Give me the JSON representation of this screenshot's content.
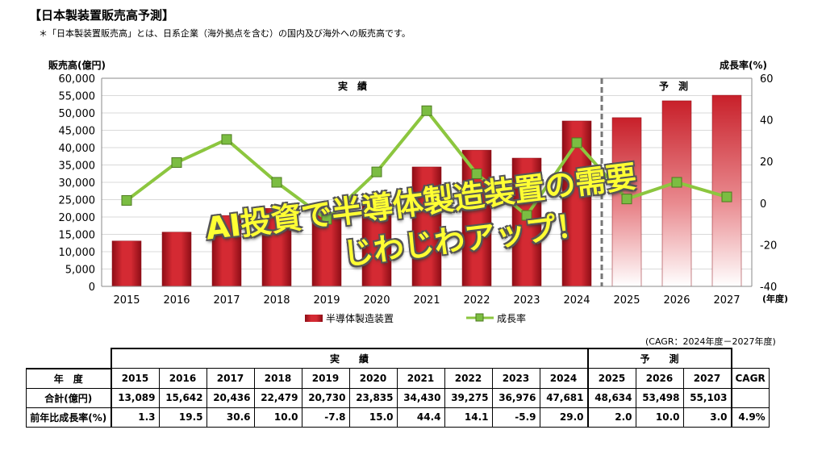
{
  "header": {
    "title": "【日本製装置販売高予測】",
    "note": "＊「日本製装置販売高」とは、日系企業（海外拠点を含む）の国内及び海外への販売高です。"
  },
  "chart_data": {
    "type": "bar",
    "ylabel": "販売高(億円)",
    "y2label": "成長率(%)",
    "xunit": "(年度)",
    "ylim": [
      0,
      60000
    ],
    "y2lim": [
      -40,
      60
    ],
    "yticks": [
      "0",
      "5,000",
      "10,000",
      "15,000",
      "20,000",
      "25,000",
      "30,000",
      "35,000",
      "40,000",
      "45,000",
      "50,000",
      "55,000",
      "60,000"
    ],
    "y2ticks": [
      "-40",
      "-20",
      "0",
      "20",
      "40",
      "60"
    ],
    "categories": [
      "2015",
      "2016",
      "2017",
      "2018",
      "2019",
      "2020",
      "2021",
      "2022",
      "2023",
      "2024",
      "2025",
      "2026",
      "2027"
    ],
    "series": [
      {
        "name": "半導体製造装置",
        "type": "bar",
        "color": "#c8202a",
        "values": [
          13089,
          15642,
          20436,
          22479,
          20730,
          23835,
          34430,
          39275,
          36976,
          47681,
          48634,
          53498,
          55103
        ]
      },
      {
        "name": "成長率",
        "type": "line",
        "color": "#8cc63f",
        "marker_color": "#7bbd42",
        "values": [
          1.3,
          19.5,
          30.6,
          10.0,
          -7.8,
          15.0,
          44.4,
          14.1,
          -5.9,
          29.0,
          2.0,
          10.0,
          3.0
        ]
      }
    ],
    "annotations": {
      "actual": "実　績",
      "forecast": "予　測"
    },
    "legend": "bottom"
  },
  "overlay": {
    "line1": "AI投資で半導体製造装置の需要",
    "line2": "じわじわアップ！"
  },
  "table": {
    "cagr_note": "(CAGR：2024年度－2027年度)",
    "group_actual": "実　　績",
    "group_forecast": "予　　測",
    "col_year": "年　度",
    "col_cagr": "CAGR",
    "row_total": "合計(億円)",
    "row_growth": "前年比成長率(%)",
    "years": [
      "2015",
      "2016",
      "2017",
      "2018",
      "2019",
      "2020",
      "2021",
      "2022",
      "2023",
      "2024",
      "2025",
      "2026",
      "2027"
    ],
    "totals": [
      "13,089",
      "15,642",
      "20,436",
      "22,479",
      "20,730",
      "23,835",
      "34,430",
      "39,275",
      "36,976",
      "47,681",
      "48,634",
      "53,498",
      "55,103"
    ],
    "growth": [
      "1.3",
      "19.5",
      "30.6",
      "10.0",
      "-7.8",
      "15.0",
      "44.4",
      "14.1",
      "-5.9",
      "29.0",
      "2.0",
      "10.0",
      "3.0"
    ],
    "cagr": "4.9%"
  }
}
